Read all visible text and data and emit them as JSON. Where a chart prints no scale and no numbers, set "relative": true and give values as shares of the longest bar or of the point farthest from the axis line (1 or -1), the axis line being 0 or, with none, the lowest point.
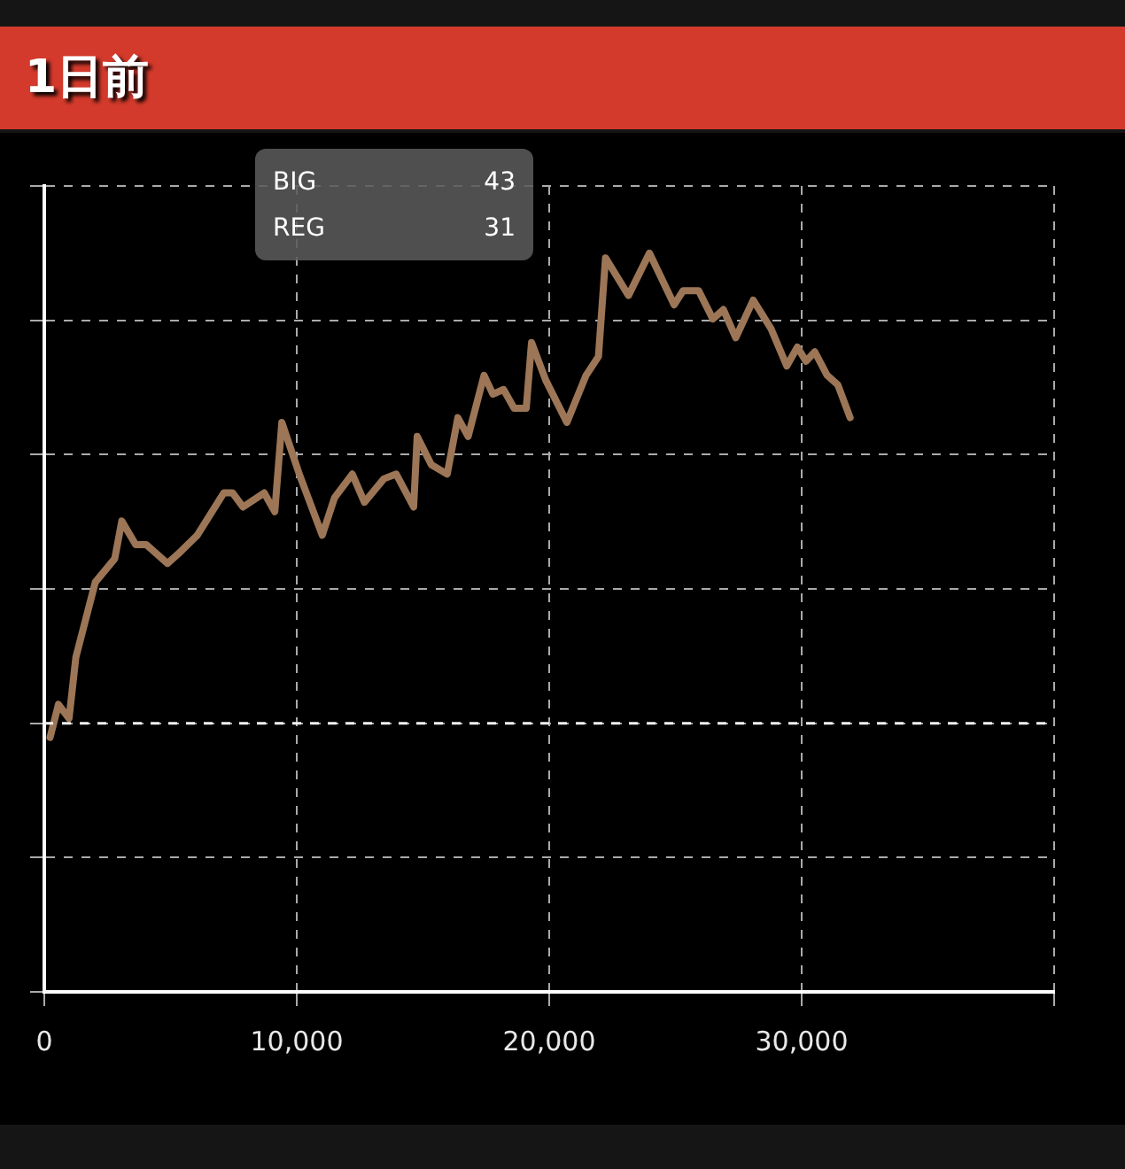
{
  "chart_data": {
    "type": "line",
    "title": "1日前",
    "relative": true,
    "grid": true,
    "legend": false,
    "marker": "none",
    "line_style": "solid",
    "xlim": [
      0,
      40000
    ],
    "xticks": [
      0,
      {
        "value": 10000,
        "label": "10,000"
      },
      {
        "value": 20000,
        "label": "20,000"
      },
      {
        "value": 30000,
        "label": "30,000"
      },
      {
        "value": 40000,
        "label": null
      }
    ],
    "annotations": [
      "BIG",
      "43",
      "REG",
      "31"
    ],
    "ref_lines": [
      {
        "axis": "y",
        "value": 0,
        "color": "#f2f2f2",
        "line_style": "dashed"
      }
    ],
    "x": [
      230,
      560,
      980,
      1250,
      2020,
      2790,
      3070,
      3620,
      4040,
      4880,
      5300,
      6060,
      7110,
      7460,
      7870,
      8710,
      9130,
      9410,
      10100,
      11010,
      11500,
      12200,
      12680,
      13450,
      13940,
      14630,
      14770,
      15330,
      15960,
      16380,
      16790,
      17420,
      17770,
      18190,
      18610,
      19090,
      19300,
      19860,
      20700,
      21460,
      21950,
      22230,
      23140,
      23970,
      24950,
      25300,
      25920,
      26480,
      26900,
      27390,
      28080,
      28780,
      29410,
      29830,
      30170,
      30520,
      31010,
      31430,
      31920
    ],
    "series": [
      {
        "color": "#9c7656",
        "values": [
          -0.03,
          0.04,
          0.01,
          0.14,
          0.3,
          0.35,
          0.43,
          0.38,
          0.38,
          0.34,
          0.36,
          0.4,
          0.49,
          0.49,
          0.46,
          0.49,
          0.45,
          0.64,
          0.53,
          0.4,
          0.48,
          0.53,
          0.47,
          0.52,
          0.53,
          0.46,
          0.61,
          0.55,
          0.53,
          0.65,
          0.61,
          0.74,
          0.7,
          0.71,
          0.67,
          0.67,
          0.81,
          0.73,
          0.64,
          0.74,
          0.78,
          0.99,
          0.91,
          1,
          0.89,
          0.92,
          0.92,
          0.86,
          0.88,
          0.82,
          0.9,
          0.84,
          0.76,
          0.8,
          0.77,
          0.79,
          0.74,
          0.72,
          0.65
        ]
      }
    ]
  }
}
